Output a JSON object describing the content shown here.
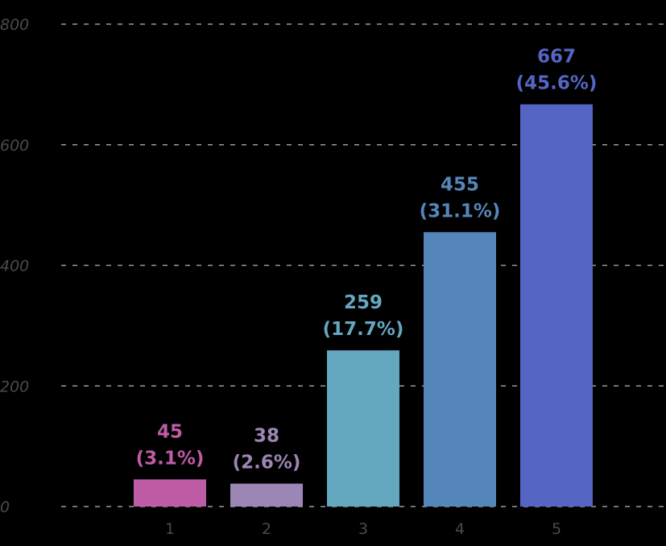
{
  "chart_data": {
    "type": "bar",
    "categories": [
      "1",
      "2",
      "3",
      "4",
      "5"
    ],
    "values": [
      45,
      38,
      259,
      455,
      667
    ],
    "percent_labels": [
      "(3.1%)",
      "(2.6%)",
      "(17.7%)",
      "(31.1%)",
      "(45.6%)"
    ],
    "colors": [
      "#be5ca6",
      "#9c86b5",
      "#64a8c0",
      "#5586bb",
      "#5565c4"
    ],
    "y_ticks": [
      "0",
      "200",
      "400",
      "600",
      "800"
    ],
    "ylim": [
      0,
      800
    ],
    "grid": true,
    "title": "",
    "xlabel": "",
    "ylabel": ""
  }
}
